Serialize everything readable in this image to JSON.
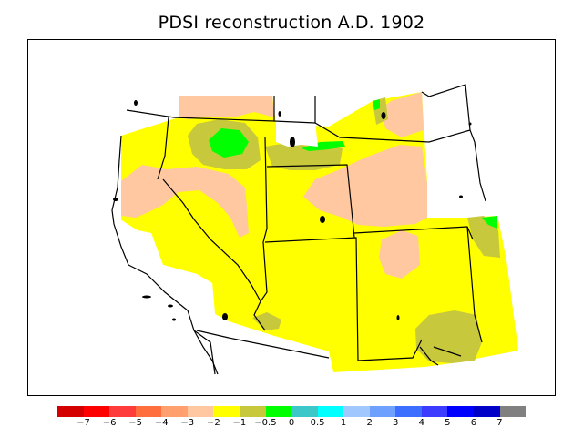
{
  "title": "PDSI reconstruction A.D. 1902",
  "legend": {
    "colors": [
      "#d40000",
      "#ff0000",
      "#ff3c3c",
      "#ff6e3c",
      "#ffa06e",
      "#ffc8a0",
      "#ffff00",
      "#c8c83c",
      "#00ff00",
      "#3cc8c8",
      "#00ffff",
      "#a0c8ff",
      "#6ea0ff",
      "#3c6eff",
      "#3c3cff",
      "#0000ff",
      "#0000c8",
      "#808080"
    ],
    "labels": [
      "−7",
      "−6",
      "−5",
      "−4",
      "−3",
      "−2",
      "−1",
      "−0.5",
      "0",
      "0.5",
      "1",
      "2",
      "3",
      "4",
      "5",
      "6",
      "7"
    ]
  },
  "map_colors": {
    "dry_moderate": "#ffc8a0",
    "dry_mild": "#ffff00",
    "near_normal_dry": "#c8c83c",
    "near_normal_wet": "#00ff00",
    "outline": "#000000",
    "no_data": "#ffffff"
  }
}
